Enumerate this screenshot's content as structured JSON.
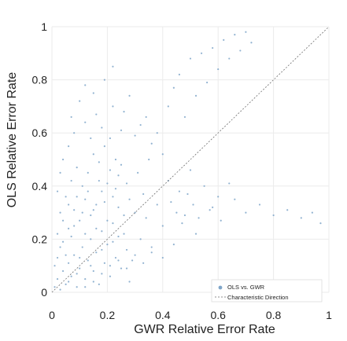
{
  "chart_data": {
    "type": "scatter",
    "xlabel": "GWR Relative Error Rate",
    "ylabel": "OLS Relative Error Rate",
    "xlim": [
      0,
      1
    ],
    "ylim": [
      0,
      1
    ],
    "x_ticks": [
      "0",
      "0.2",
      "0.4",
      "0.6",
      "0.8",
      "1"
    ],
    "y_ticks": [
      "0",
      "0.2",
      "0.4",
      "0.6",
      "0.8",
      "1"
    ],
    "grid": true,
    "legend": {
      "placement": "bottom-right",
      "entries": [
        "OLS vs. GWR",
        "Characteristic Direction"
      ]
    },
    "colors": {
      "points": "#7fa6c9",
      "line": "#6f6f6f",
      "grid": "#ebebeb"
    },
    "series": [
      {
        "name": "OLS vs. GWR",
        "points": [
          [
            0.01,
            0.02
          ],
          [
            0.02,
            0.05
          ],
          [
            0.03,
            0.01
          ],
          [
            0.04,
            0.08
          ],
          [
            0.05,
            0.03
          ],
          [
            0.06,
            0.11
          ],
          [
            0.07,
            0.06
          ],
          [
            0.08,
            0.14
          ],
          [
            0.09,
            0.02
          ],
          [
            0.1,
            0.09
          ],
          [
            0.11,
            0.17
          ],
          [
            0.12,
            0.05
          ],
          [
            0.13,
            0.12
          ],
          [
            0.14,
            0.2
          ],
          [
            0.15,
            0.08
          ],
          [
            0.16,
            0.15
          ],
          [
            0.17,
            0.03
          ],
          [
            0.18,
            0.23
          ],
          [
            0.19,
            0.11
          ],
          [
            0.2,
            0.18
          ],
          [
            0.21,
            0.06
          ],
          [
            0.22,
            0.26
          ],
          [
            0.23,
            0.13
          ],
          [
            0.24,
            0.21
          ],
          [
            0.25,
            0.09
          ],
          [
            0.26,
            0.29
          ],
          [
            0.27,
            0.16
          ],
          [
            0.28,
            0.04
          ],
          [
            0.02,
            0.13
          ],
          [
            0.04,
            0.19
          ],
          [
            0.06,
            0.24
          ],
          [
            0.08,
            0.31
          ],
          [
            0.1,
            0.27
          ],
          [
            0.12,
            0.35
          ],
          [
            0.14,
            0.29
          ],
          [
            0.16,
            0.33
          ],
          [
            0.18,
            0.38
          ],
          [
            0.2,
            0.41
          ],
          [
            0.22,
            0.36
          ],
          [
            0.24,
            0.44
          ],
          [
            0.03,
            0.3
          ],
          [
            0.05,
            0.36
          ],
          [
            0.07,
            0.42
          ],
          [
            0.09,
            0.47
          ],
          [
            0.11,
            0.4
          ],
          [
            0.13,
            0.45
          ],
          [
            0.15,
            0.52
          ],
          [
            0.17,
            0.49
          ],
          [
            0.19,
            0.55
          ],
          [
            0.21,
            0.58
          ],
          [
            0.23,
            0.5
          ],
          [
            0.25,
            0.61
          ],
          [
            0.03,
            0.45
          ],
          [
            0.06,
            0.55
          ],
          [
            0.08,
            0.6
          ],
          [
            0.12,
            0.64
          ],
          [
            0.14,
            0.58
          ],
          [
            0.16,
            0.67
          ],
          [
            0.18,
            0.62
          ],
          [
            0.22,
            0.7
          ],
          [
            0.01,
            0.1
          ],
          [
            0.02,
            0.22
          ],
          [
            0.03,
            0.17
          ],
          [
            0.04,
            0.27
          ],
          [
            0.05,
            0.14
          ],
          [
            0.06,
            0.33
          ],
          [
            0.07,
            0.21
          ],
          [
            0.08,
            0.25
          ],
          [
            0.09,
            0.36
          ],
          [
            0.1,
            0.13
          ],
          [
            0.11,
            0.3
          ],
          [
            0.12,
            0.22
          ],
          [
            0.13,
            0.38
          ],
          [
            0.14,
            0.1
          ],
          [
            0.15,
            0.31
          ],
          [
            0.16,
            0.24
          ],
          [
            0.17,
            0.42
          ],
          [
            0.18,
            0.16
          ],
          [
            0.19,
            0.34
          ],
          [
            0.2,
            0.27
          ],
          [
            0.21,
            0.46
          ],
          [
            0.22,
            0.19
          ],
          [
            0.23,
            0.39
          ],
          [
            0.24,
            0.32
          ],
          [
            0.25,
            0.48
          ],
          [
            0.26,
            0.22
          ],
          [
            0.27,
            0.41
          ],
          [
            0.28,
            0.35
          ],
          [
            0.29,
            0.12
          ],
          [
            0.3,
            0.3
          ],
          [
            0.31,
            0.45
          ],
          [
            0.32,
            0.2
          ],
          [
            0.33,
            0.37
          ],
          [
            0.34,
            0.28
          ],
          [
            0.35,
            0.5
          ],
          [
            0.36,
            0.15
          ],
          [
            0.38,
            0.33
          ],
          [
            0.4,
            0.25
          ],
          [
            0.42,
            0.42
          ],
          [
            0.44,
            0.18
          ],
          [
            0.46,
            0.38
          ],
          [
            0.48,
            0.29
          ],
          [
            0.5,
            0.46
          ],
          [
            0.52,
            0.22
          ],
          [
            0.55,
            0.4
          ],
          [
            0.58,
            0.32
          ],
          [
            0.6,
            0.36
          ],
          [
            0.64,
            0.41
          ],
          [
            0.06,
            0.04
          ],
          [
            0.09,
            0.07
          ],
          [
            0.12,
            0.02
          ],
          [
            0.15,
            0.04
          ],
          [
            0.18,
            0.07
          ],
          [
            0.21,
            0.1
          ],
          [
            0.24,
            0.12
          ],
          [
            0.27,
            0.09
          ],
          [
            0.3,
            0.14
          ],
          [
            0.33,
            0.11
          ],
          [
            0.36,
            0.17
          ],
          [
            0.4,
            0.13
          ],
          [
            0.02,
            0.38
          ],
          [
            0.04,
            0.5
          ],
          [
            0.07,
            0.66
          ],
          [
            0.1,
            0.72
          ],
          [
            0.12,
            0.78
          ],
          [
            0.15,
            0.75
          ],
          [
            0.19,
            0.8
          ],
          [
            0.22,
            0.85
          ],
          [
            0.26,
            0.68
          ],
          [
            0.28,
            0.74
          ],
          [
            0.3,
            0.59
          ],
          [
            0.32,
            0.63
          ],
          [
            0.34,
            0.66
          ],
          [
            0.36,
            0.56
          ],
          [
            0.38,
            0.6
          ],
          [
            0.4,
            0.52
          ],
          [
            0.42,
            0.7
          ],
          [
            0.44,
            0.77
          ],
          [
            0.46,
            0.82
          ],
          [
            0.48,
            0.66
          ],
          [
            0.5,
            0.88
          ],
          [
            0.52,
            0.74
          ],
          [
            0.54,
            0.9
          ],
          [
            0.56,
            0.79
          ],
          [
            0.58,
            0.92
          ],
          [
            0.6,
            0.84
          ],
          [
            0.62,
            0.95
          ],
          [
            0.64,
            0.88
          ],
          [
            0.66,
            0.97
          ],
          [
            0.68,
            0.91
          ],
          [
            0.7,
            0.98
          ],
          [
            0.72,
            0.94
          ],
          [
            0.43,
            0.34
          ],
          [
            0.45,
            0.3
          ],
          [
            0.47,
            0.26
          ],
          [
            0.49,
            0.37
          ],
          [
            0.51,
            0.33
          ],
          [
            0.53,
            0.28
          ],
          [
            0.57,
            0.31
          ],
          [
            0.61,
            0.27
          ],
          [
            0.66,
            0.35
          ],
          [
            0.7,
            0.3
          ],
          [
            0.75,
            0.33
          ],
          [
            0.8,
            0.29
          ],
          [
            0.85,
            0.31
          ],
          [
            0.9,
            0.28
          ],
          [
            0.94,
            0.3
          ],
          [
            0.97,
            0.26
          ]
        ]
      },
      {
        "name": "Characteristic Direction",
        "x": [
          0,
          1
        ],
        "y": [
          0,
          1
        ]
      }
    ]
  }
}
